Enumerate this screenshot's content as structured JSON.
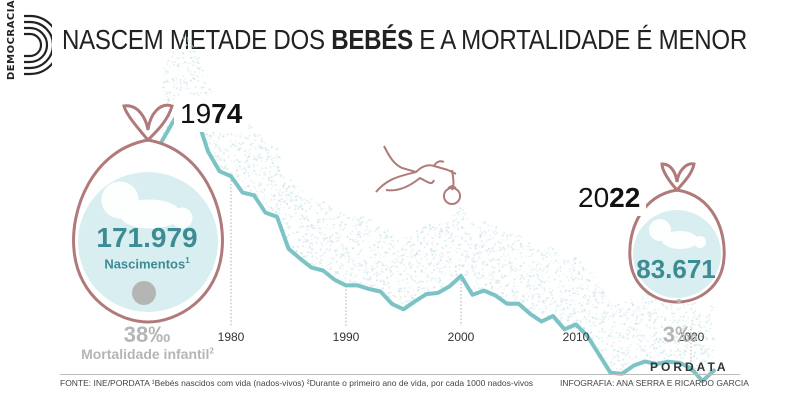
{
  "header": {
    "logo_text": "DEMOCRACIA",
    "title_part1": "NASCEM METADE DOS ",
    "title_bold": "BEBÉS",
    "title_part2": " E A MORTALIDADE É MENOR"
  },
  "start": {
    "year_prefix": "19",
    "year_bold": "74",
    "births": "171.979",
    "births_label": "Nascimentos",
    "births_note": "1",
    "mortality": "38‰",
    "mortality_label": "Mortalidade infantil",
    "mortality_note": "2"
  },
  "end": {
    "year_prefix": "20",
    "year_bold": "22",
    "births": "83.671",
    "mortality": "3‰"
  },
  "chart_data": {
    "type": "line",
    "x_ticks": [
      1980,
      1990,
      2000,
      2010,
      2020
    ],
    "x_tick_labels": [
      "1980",
      "1990",
      "2000",
      "2010",
      "2020"
    ],
    "xlim": [
      1974,
      2022
    ],
    "ylim": [
      80000,
      180000
    ],
    "series": [
      {
        "color": "#7cc3c6",
        "x": [
          1974,
          1975,
          1976,
          1977,
          1978,
          1979,
          1980,
          1981,
          1982,
          1983,
          1984,
          1985,
          1986,
          1987,
          1988,
          1989,
          1990,
          1991,
          1992,
          1993,
          1994,
          1995,
          1996,
          1997,
          1998,
          1999,
          2000,
          2001,
          2002,
          2003,
          2004,
          2005,
          2006,
          2007,
          2008,
          2009,
          2010,
          2011,
          2012,
          2013,
          2014,
          2015,
          2016,
          2017,
          2018,
          2019,
          2020,
          2021,
          2022
        ],
        "values": [
          171979,
          179648,
          186712,
          181413,
          167912,
          160314,
          158352,
          152101,
          151029,
          144327,
          142805,
          130492,
          126748,
          123218,
          122121,
          118560,
          116383,
          116415,
          115018,
          114030,
          109287,
          107184,
          110261,
          113047,
          113510,
          116002,
          120008,
          112774,
          114383,
          112515,
          109298,
          109399,
          105449,
          102492,
          104594,
          99491,
          101381,
          96856,
          89841,
          82787,
          82367,
          85500,
          87126,
          86154,
          87020,
          86579,
          84530,
          79582,
          83671
        ]
      }
    ],
    "mortality_start": 38,
    "mortality_end": 3,
    "mortality_unit": "‰"
  },
  "footer": {
    "brand": "PORDATA",
    "source": "FONTE: INE/PORDATA   ¹Bebés nascidos com vida (nados-vivos) ²Durante o primeiro ano de vida, por cada 1000 nados-vivos",
    "credits": "INFOGRAFIA: ANA SERRA E RICARDO GARCIA"
  },
  "colors": {
    "accent": "#3d8c93",
    "line": "#7cc3c6",
    "bag": "#b07a7a",
    "bag_fill": "#d9eef0",
    "texture": "#cfe6e8",
    "mortality": "#b5b5b5"
  }
}
